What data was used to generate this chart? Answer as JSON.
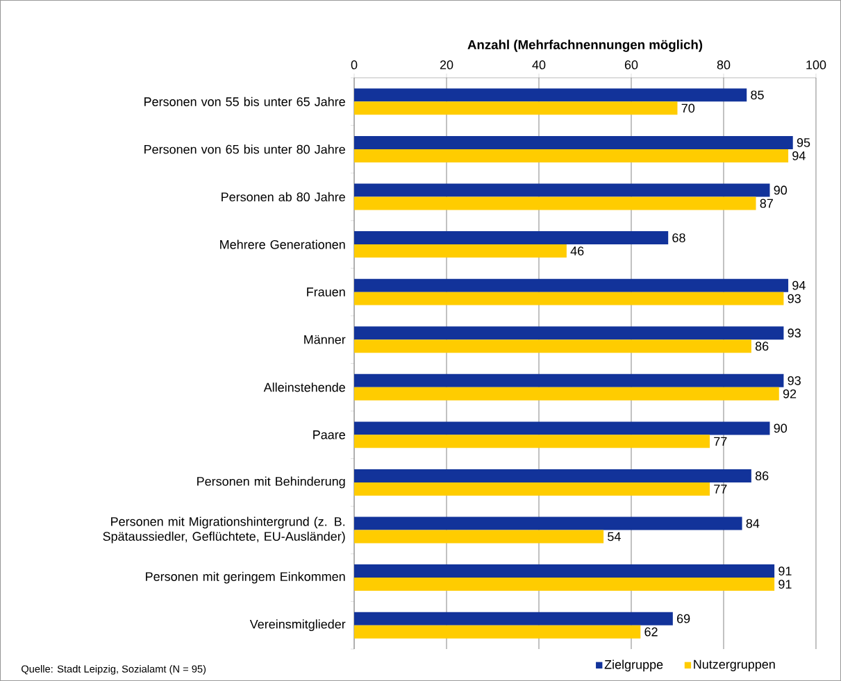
{
  "chart_data": {
    "type": "bar",
    "orientation": "horizontal",
    "xlabel": "Anzahl (Mehrfachnennungen möglich)",
    "categories": [
      "Personen von 55 bis unter 65 Jahre",
      "Personen von 65 bis unter 80 Jahre",
      "Personen ab 80 Jahre",
      "Mehrere Generationen",
      "Frauen",
      "Männer",
      "Alleinstehende",
      "Paare",
      "Personen mit Behinderung",
      "Personen mit Migrationshintergrund (z. B. Spätaussiedler, Geflüchtete, EU-Ausländer)",
      "Personen mit geringem Einkommen",
      "Vereinsmitglieder"
    ],
    "series": [
      {
        "name": "Zielgruppe",
        "color": "#12339a",
        "values": [
          85,
          95,
          90,
          68,
          94,
          93,
          93,
          90,
          86,
          84,
          91,
          69
        ]
      },
      {
        "name": "Nutzergruppen",
        "color": "#ffcc00",
        "values": [
          70,
          94,
          87,
          46,
          93,
          86,
          92,
          77,
          77,
          54,
          91,
          62
        ]
      }
    ],
    "xlim": [
      0,
      100
    ],
    "xticks": [
      0,
      20,
      40,
      60,
      80,
      100
    ],
    "grid": "x",
    "data_labels": true,
    "legend": "bottom",
    "annotations": [
      "Quelle: Stadt Leipzig, Sozialamt (N = 95)"
    ]
  }
}
